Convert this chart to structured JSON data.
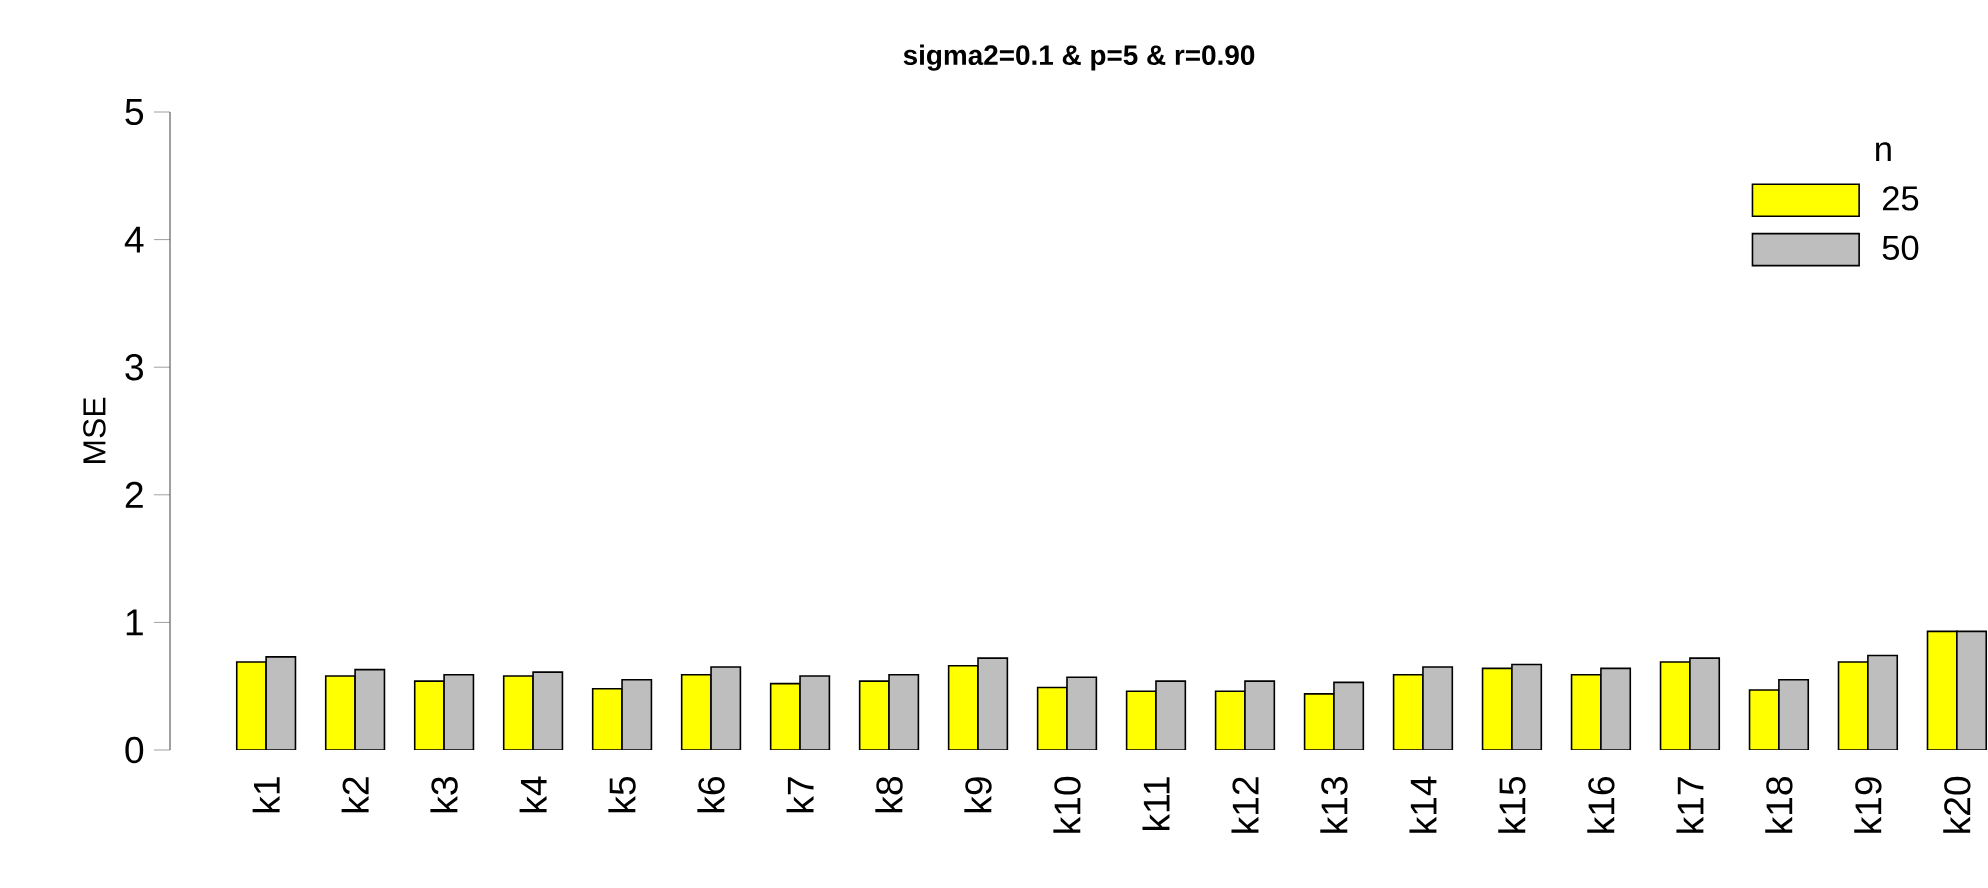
{
  "chart_data": {
    "type": "bar",
    "title": "sigma2=0.1 &  p=5 & r=0.90",
    "ylabel": "MSE",
    "legend_title": "n",
    "legend": "top right",
    "categories": [
      "k1",
      "k2",
      "k3",
      "k4",
      "k5",
      "k6",
      "k7",
      "k8",
      "k9",
      "k10",
      "k11",
      "k12",
      "k13",
      "k14",
      "k15",
      "k16",
      "k17",
      "k18",
      "k19",
      "k20"
    ],
    "series": [
      {
        "name": "25",
        "color": "#ffff00",
        "values": [
          0.69,
          0.58,
          0.54,
          0.58,
          0.48,
          0.59,
          0.52,
          0.54,
          0.66,
          0.49,
          0.46,
          0.46,
          0.44,
          0.59,
          0.64,
          0.59,
          0.69,
          0.47,
          0.69,
          0.93
        ]
      },
      {
        "name": "50",
        "color": "#bebebe",
        "values": [
          0.73,
          0.63,
          0.59,
          0.61,
          0.55,
          0.65,
          0.58,
          0.59,
          0.72,
          0.57,
          0.54,
          0.54,
          0.53,
          0.65,
          0.67,
          0.64,
          0.72,
          0.55,
          0.74,
          0.93
        ]
      }
    ],
    "ylim": [
      0,
      5
    ],
    "yticks": [
      0,
      1,
      2,
      3,
      4,
      5
    ]
  }
}
